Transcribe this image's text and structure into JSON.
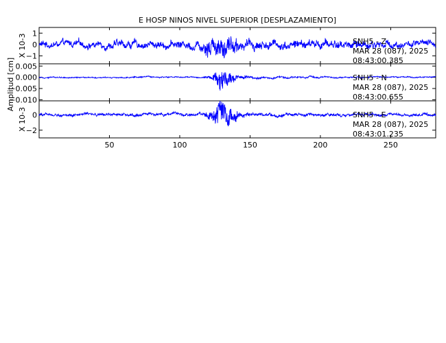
{
  "chart_data": {
    "type": "line",
    "title": "E HOSP NINOS NIVEL SUPERIOR [DESPLAZAMIENTO]",
    "ylabel": "Amplitud [cm]",
    "xlim": [
      0,
      282
    ],
    "x_ticks": [
      50,
      100,
      150,
      200,
      250
    ],
    "trace_color": "#0000ff",
    "series": [
      {
        "name": "SNH5 - Z",
        "station_label": "SNH5 - Z",
        "date_label": "MAR 28 (087), 2025",
        "time_label": "08:43:00.385",
        "scale_label": "X 10-3",
        "ylim": [
          -1.7,
          1.5
        ],
        "y_ticks": [
          1,
          0,
          -1
        ],
        "y_tick_labels": [
          "1",
          "0",
          "−1"
        ],
        "envelope": [
          [
            0,
            0.75
          ],
          [
            100,
            0.9
          ],
          [
            112,
            1.1
          ],
          [
            120,
            1.4
          ],
          [
            128,
            1.5
          ],
          [
            140,
            1.2
          ],
          [
            160,
            1.0
          ],
          [
            200,
            1.0
          ],
          [
            250,
            0.9
          ],
          [
            282,
            0.7
          ]
        ],
        "approximate": true
      },
      {
        "name": "SNH5 - N",
        "station_label": "SNH5 - N",
        "date_label": "MAR 28 (087), 2025",
        "time_label": "08:43:00.655",
        "scale_label": "",
        "ylim": [
          -0.0105,
          0.006
        ],
        "y_ticks": [
          0.005,
          0.0,
          -0.005,
          -0.01
        ],
        "y_tick_labels": [
          "0.005",
          "0.000",
          "−0.005",
          "−0.010"
        ],
        "envelope": [
          [
            0,
            0.0007
          ],
          [
            122,
            0.0008
          ],
          [
            126,
            0.004
          ],
          [
            128,
            0.0085
          ],
          [
            132,
            0.005
          ],
          [
            140,
            0.0025
          ],
          [
            160,
            0.0011
          ],
          [
            282,
            0.0007
          ]
        ],
        "approximate": true
      },
      {
        "name": "SNH5 - E",
        "station_label": "SNH5 - E",
        "date_label": "MAR 28 (087), 2025",
        "time_label": "08:43:01.235",
        "scale_label": "X 10-3",
        "ylim": [
          -3.0,
          1.8
        ],
        "y_ticks": [
          0,
          -2
        ],
        "y_tick_labels": [
          "0",
          "−2"
        ],
        "envelope": [
          [
            0,
            0.45
          ],
          [
            118,
            0.5
          ],
          [
            124,
            1.2
          ],
          [
            128,
            2.8
          ],
          [
            133,
            2.0
          ],
          [
            140,
            1.1
          ],
          [
            155,
            0.6
          ],
          [
            282,
            0.45
          ]
        ],
        "approximate": true
      }
    ]
  }
}
